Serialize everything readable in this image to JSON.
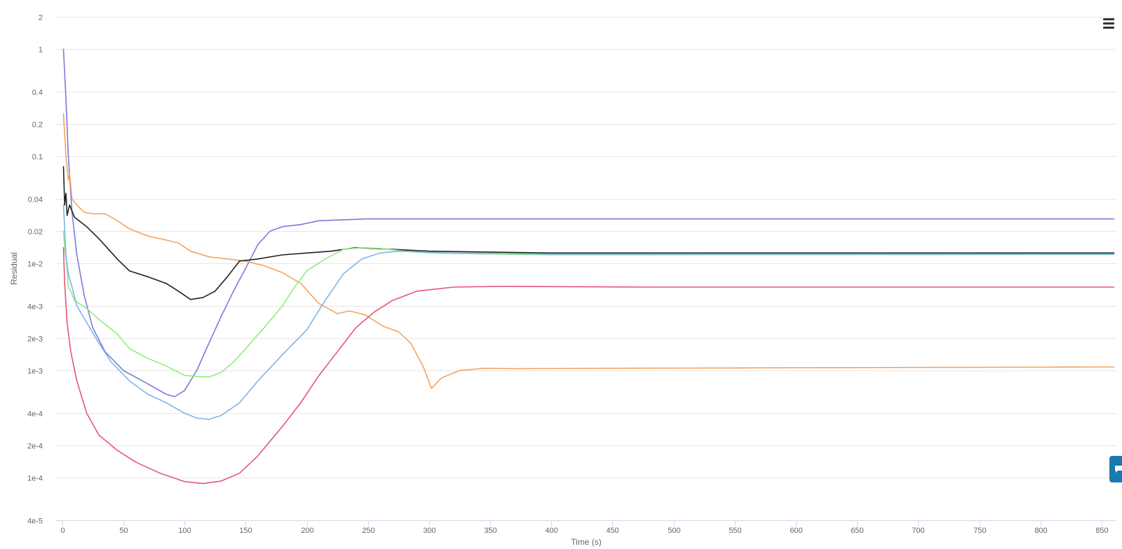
{
  "chart_data": {
    "type": "line",
    "title": "",
    "xlabel": "Time (s)",
    "ylabel": "Residual",
    "xscale": "linear",
    "yscale": "log",
    "xlim": [
      -5,
      862
    ],
    "ylim": [
      4e-05,
      2
    ],
    "grid": "horizontal",
    "legend": "none",
    "x_ticks": [
      {
        "value": 0,
        "label": "0"
      },
      {
        "value": 50,
        "label": "50"
      },
      {
        "value": 100,
        "label": "100"
      },
      {
        "value": 150,
        "label": "150"
      },
      {
        "value": 200,
        "label": "200"
      },
      {
        "value": 250,
        "label": "250"
      },
      {
        "value": 300,
        "label": "300"
      },
      {
        "value": 350,
        "label": "350"
      },
      {
        "value": 400,
        "label": "400"
      },
      {
        "value": 450,
        "label": "450"
      },
      {
        "value": 500,
        "label": "500"
      },
      {
        "value": 550,
        "label": "550"
      },
      {
        "value": 600,
        "label": "600"
      },
      {
        "value": 650,
        "label": "650"
      },
      {
        "value": 700,
        "label": "700"
      },
      {
        "value": 750,
        "label": "750"
      },
      {
        "value": 800,
        "label": "800"
      },
      {
        "value": 850,
        "label": "850"
      }
    ],
    "y_ticks": [
      {
        "value": 2,
        "label": "2"
      },
      {
        "value": 1,
        "label": "1"
      },
      {
        "value": 0.4,
        "label": "0.4"
      },
      {
        "value": 0.2,
        "label": "0.2"
      },
      {
        "value": 0.1,
        "label": "0.1"
      },
      {
        "value": 0.04,
        "label": "0.04"
      },
      {
        "value": 0.02,
        "label": "0.02"
      },
      {
        "value": 0.01,
        "label": "1e-2"
      },
      {
        "value": 0.004,
        "label": "4e-3"
      },
      {
        "value": 0.002,
        "label": "2e-3"
      },
      {
        "value": 0.001,
        "label": "1e-3"
      },
      {
        "value": 0.0004,
        "label": "4e-4"
      },
      {
        "value": 0.0002,
        "label": "2e-4"
      },
      {
        "value": 0.0001,
        "label": "1e-4"
      },
      {
        "value": 4e-05,
        "label": "4e-5"
      }
    ],
    "series": [
      {
        "color": "#7B7BDB",
        "points": [
          [
            1,
            1.0
          ],
          [
            3,
            0.35
          ],
          [
            5,
            0.1
          ],
          [
            8,
            0.03
          ],
          [
            12,
            0.012
          ],
          [
            18,
            0.005
          ],
          [
            25,
            0.0025
          ],
          [
            35,
            0.0015
          ],
          [
            50,
            0.001
          ],
          [
            70,
            0.00075
          ],
          [
            85,
            0.0006
          ],
          [
            92,
            0.00057
          ],
          [
            100,
            0.00065
          ],
          [
            110,
            0.001
          ],
          [
            120,
            0.0018
          ],
          [
            130,
            0.0032
          ],
          [
            140,
            0.0055
          ],
          [
            150,
            0.009
          ],
          [
            160,
            0.015
          ],
          [
            170,
            0.02
          ],
          [
            180,
            0.022
          ],
          [
            195,
            0.023
          ],
          [
            210,
            0.025
          ],
          [
            250,
            0.026
          ],
          [
            300,
            0.026
          ],
          [
            400,
            0.026
          ],
          [
            600,
            0.026
          ],
          [
            860,
            0.026
          ]
        ]
      },
      {
        "color": "#F4A460",
        "points": [
          [
            1,
            0.25
          ],
          [
            3,
            0.1
          ],
          [
            5,
            0.06
          ],
          [
            6,
            0.07
          ],
          [
            8,
            0.04
          ],
          [
            12,
            0.035
          ],
          [
            18,
            0.03
          ],
          [
            25,
            0.029
          ],
          [
            35,
            0.029
          ],
          [
            45,
            0.025
          ],
          [
            55,
            0.021
          ],
          [
            70,
            0.018
          ],
          [
            85,
            0.0165
          ],
          [
            95,
            0.0155
          ],
          [
            105,
            0.013
          ],
          [
            120,
            0.0115
          ],
          [
            135,
            0.011
          ],
          [
            150,
            0.0105
          ],
          [
            165,
            0.0095
          ],
          [
            180,
            0.0082
          ],
          [
            195,
            0.0065
          ],
          [
            210,
            0.0042
          ],
          [
            225,
            0.0034
          ],
          [
            235,
            0.0036
          ],
          [
            248,
            0.0033
          ],
          [
            262,
            0.0026
          ],
          [
            275,
            0.0023
          ],
          [
            285,
            0.0018
          ],
          [
            295,
            0.0011
          ],
          [
            302,
            0.00068
          ],
          [
            310,
            0.00085
          ],
          [
            325,
            0.001
          ],
          [
            345,
            0.00105
          ],
          [
            370,
            0.00104
          ],
          [
            450,
            0.00105
          ],
          [
            600,
            0.00106
          ],
          [
            860,
            0.00108
          ]
        ]
      },
      {
        "color": "#222222",
        "points": [
          [
            1,
            0.08
          ],
          [
            2,
            0.035
          ],
          [
            3,
            0.045
          ],
          [
            4,
            0.028
          ],
          [
            6,
            0.035
          ],
          [
            10,
            0.027
          ],
          [
            20,
            0.022
          ],
          [
            30,
            0.017
          ],
          [
            45,
            0.011
          ],
          [
            55,
            0.0085
          ],
          [
            70,
            0.0075
          ],
          [
            85,
            0.0065
          ],
          [
            95,
            0.0055
          ],
          [
            105,
            0.0046
          ],
          [
            115,
            0.0048
          ],
          [
            125,
            0.0055
          ],
          [
            135,
            0.0075
          ],
          [
            145,
            0.0105
          ],
          [
            160,
            0.011
          ],
          [
            180,
            0.012
          ],
          [
            200,
            0.0125
          ],
          [
            220,
            0.013
          ],
          [
            240,
            0.014
          ],
          [
            270,
            0.0135
          ],
          [
            300,
            0.013
          ],
          [
            400,
            0.0125
          ],
          [
            600,
            0.0125
          ],
          [
            860,
            0.0125
          ]
        ]
      },
      {
        "color": "#90ED7D",
        "points": [
          [
            1,
            0.02
          ],
          [
            2,
            0.014
          ],
          [
            4,
            0.009
          ],
          [
            5,
            0.006
          ],
          [
            7,
            0.0055
          ],
          [
            10,
            0.0045
          ],
          [
            20,
            0.0038
          ],
          [
            30,
            0.003
          ],
          [
            45,
            0.0022
          ],
          [
            55,
            0.0016
          ],
          [
            70,
            0.0013
          ],
          [
            85,
            0.0011
          ],
          [
            100,
            0.0009
          ],
          [
            110,
            0.00088
          ],
          [
            120,
            0.00087
          ],
          [
            130,
            0.00096
          ],
          [
            140,
            0.0012
          ],
          [
            150,
            0.0016
          ],
          [
            165,
            0.0025
          ],
          [
            180,
            0.004
          ],
          [
            190,
            0.006
          ],
          [
            200,
            0.0085
          ],
          [
            215,
            0.011
          ],
          [
            230,
            0.0135
          ],
          [
            245,
            0.014
          ],
          [
            260,
            0.0138
          ],
          [
            280,
            0.013
          ],
          [
            300,
            0.0125
          ],
          [
            400,
            0.012
          ],
          [
            860,
            0.0121
          ]
        ]
      },
      {
        "color": "#7CB5EC",
        "points": [
          [
            1,
            0.035
          ],
          [
            3,
            0.012
          ],
          [
            5,
            0.008
          ],
          [
            8,
            0.006
          ],
          [
            12,
            0.004
          ],
          [
            20,
            0.0028
          ],
          [
            30,
            0.0018
          ],
          [
            40,
            0.0012
          ],
          [
            55,
            0.0008
          ],
          [
            70,
            0.0006
          ],
          [
            85,
            0.0005
          ],
          [
            100,
            0.0004
          ],
          [
            110,
            0.00036
          ],
          [
            120,
            0.00035
          ],
          [
            130,
            0.00038
          ],
          [
            145,
            0.0005
          ],
          [
            160,
            0.0008
          ],
          [
            180,
            0.0014
          ],
          [
            200,
            0.0024
          ],
          [
            215,
            0.0045
          ],
          [
            230,
            0.008
          ],
          [
            245,
            0.011
          ],
          [
            260,
            0.0125
          ],
          [
            275,
            0.013
          ],
          [
            290,
            0.0128
          ],
          [
            320,
            0.0125
          ],
          [
            400,
            0.0122
          ],
          [
            860,
            0.0122
          ]
        ]
      },
      {
        "color": "#E8547C",
        "points": [
          [
            1,
            0.014
          ],
          [
            2,
            0.0065
          ],
          [
            4,
            0.0028
          ],
          [
            7,
            0.0015
          ],
          [
            12,
            0.0008
          ],
          [
            20,
            0.0004
          ],
          [
            30,
            0.00025
          ],
          [
            45,
            0.00018
          ],
          [
            60,
            0.00014
          ],
          [
            80,
            0.00011
          ],
          [
            100,
            9.2e-05
          ],
          [
            115,
            8.8e-05
          ],
          [
            130,
            9.3e-05
          ],
          [
            145,
            0.00011
          ],
          [
            160,
            0.00016
          ],
          [
            180,
            0.0003
          ],
          [
            195,
            0.0005
          ],
          [
            210,
            0.0009
          ],
          [
            225,
            0.0015
          ],
          [
            240,
            0.0025
          ],
          [
            255,
            0.0035
          ],
          [
            270,
            0.0045
          ],
          [
            290,
            0.0055
          ],
          [
            320,
            0.006
          ],
          [
            360,
            0.0061
          ],
          [
            480,
            0.006
          ],
          [
            860,
            0.006
          ]
        ]
      }
    ]
  },
  "ui": {
    "menu_icon": "hamburger-menu-icon",
    "side_tab_icon": "chat-bubble-icon",
    "side_tab_color": "#1a7ab0"
  }
}
